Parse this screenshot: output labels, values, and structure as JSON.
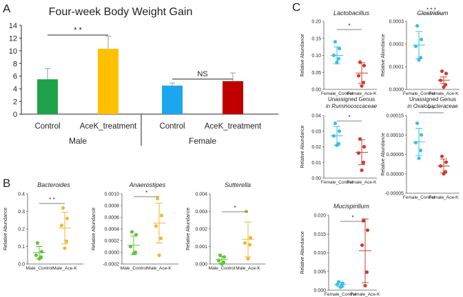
{
  "panels": {
    "a": "A",
    "b": "B",
    "c": "C"
  },
  "chart_data": [
    {
      "id": "A",
      "type": "bar",
      "title": "Four-week Body Weight Gain",
      "categories": [
        "Control",
        "AceK_treatment",
        "Control",
        "AceK_treatment"
      ],
      "groups": [
        "Male",
        "Female"
      ],
      "values": [
        5.5,
        10.3,
        4.5,
        5.2
      ],
      "errors": [
        1.7,
        2.0,
        0.4,
        1.3
      ],
      "colors": [
        "#1fa34a",
        "#ffc000",
        "#1ba6ee",
        "#c00000"
      ],
      "ylim": [
        0,
        14
      ],
      "yticks": [
        "0",
        "2",
        "4",
        "6",
        "8",
        "10",
        "12",
        "14"
      ],
      "sig": [
        "* *",
        "NS"
      ]
    },
    {
      "id": "B1",
      "type": "scatter",
      "title": "Bacteroides",
      "ylabel": "Relative Abundance",
      "categories": [
        "Male_Control",
        "Male_Ace-K"
      ],
      "ylim": [
        0,
        0.4
      ],
      "yticks": [
        "0.0",
        "0.1",
        "0.2",
        "0.3",
        "0.4"
      ],
      "tickvals": [
        0,
        0.1,
        0.2,
        0.3,
        0.4
      ],
      "groups": [
        {
          "name": "Male_Control",
          "color": "#5cc736",
          "mean": 0.065,
          "sd": 0.035,
          "points": [
            0.12,
            0.07,
            0.05,
            0.04,
            0.03
          ]
        },
        {
          "name": "Male_Ace-K",
          "color": "#f2b631",
          "mean": 0.205,
          "sd": 0.09,
          "points": [
            0.32,
            0.26,
            0.22,
            0.13,
            0.09
          ]
        }
      ],
      "sig": "* *"
    },
    {
      "id": "B2",
      "type": "scatter",
      "title": "Anaerostipes",
      "ylabel": "Relative Abundance",
      "categories": [
        "Male_Control",
        "Male_Ace-K"
      ],
      "ylim": [
        -0.0002,
        0.001
      ],
      "yticks": [
        "-0.0002",
        "0.0000",
        "0.0002",
        "0.0004",
        "0.0006",
        "0.0008",
        "0.0010"
      ],
      "tickvals": [
        -0.0002,
        0,
        0.0002,
        0.0004,
        0.0006,
        0.0008,
        0.001
      ],
      "groups": [
        {
          "name": "Male_Control",
          "color": "#5cc736",
          "mean": 0.00012,
          "sd": 0.00016,
          "points": [
            0.00035,
            0.0003,
            0.0001,
            0.0,
            -2e-05
          ]
        },
        {
          "name": "Male_Ace-K",
          "color": "#f2b631",
          "mean": 0.0005,
          "sd": 0.00034,
          "points": [
            0.00092,
            0.00063,
            0.00045,
            0.00024,
            -5e-05
          ]
        }
      ],
      "sig": "*"
    },
    {
      "id": "B3",
      "type": "scatter",
      "title": "Sutterella",
      "ylabel": "Relative Abundance",
      "categories": [
        "Male_Control",
        "Male_Ace-K"
      ],
      "ylim": [
        0,
        0.004
      ],
      "yticks": [
        "0.000",
        "0.001",
        "0.002",
        "0.003",
        "0.004"
      ],
      "tickvals": [
        0,
        0.001,
        0.002,
        0.003,
        0.004
      ],
      "groups": [
        {
          "name": "Male_Control",
          "color": "#5cc736",
          "mean": 0.00025,
          "sd": 0.0002,
          "points": [
            0.0005,
            0.0004,
            0.0002,
            0.0001,
            0.0
          ]
        },
        {
          "name": "Male_Ace-K",
          "color": "#f2b631",
          "mean": 0.0014,
          "sd": 0.001,
          "points": [
            0.003,
            0.0015,
            0.0012,
            0.0011,
            0.0003
          ]
        }
      ],
      "sig": "*"
    },
    {
      "id": "C1",
      "type": "scatter",
      "title": "Lactobacillus",
      "ylabel": "Relative Abundance",
      "categories": [
        "Female_Control",
        "Female_Ace-K"
      ],
      "ylim": [
        0,
        0.2
      ],
      "yticks": [
        "0.00",
        "0.05",
        "0.10",
        "0.15",
        "0.20"
      ],
      "tickvals": [
        0,
        0.05,
        0.1,
        0.15,
        0.2
      ],
      "groups": [
        {
          "name": "Female_Control",
          "color": "#39c0e4",
          "mean": 0.1,
          "sd": 0.025,
          "points": [
            0.14,
            0.12,
            0.1,
            0.09,
            0.08
          ]
        },
        {
          "name": "Female_Ace-K",
          "color": "#cf3b2a",
          "mean": 0.048,
          "sd": 0.03,
          "points": [
            0.08,
            0.07,
            0.04,
            0.02,
            0.01
          ]
        }
      ],
      "sig": "*"
    },
    {
      "id": "C2",
      "type": "scatter",
      "title": "Clostridium",
      "ylabel": "Relative Abundance",
      "categories": [
        "Female_Control",
        "Female_Ace-K"
      ],
      "ylim": [
        0,
        0.0003
      ],
      "yticks": [
        "0.0000",
        "0.0001",
        "0.0002",
        "0.0003"
      ],
      "tickvals": [
        0,
        0.0001,
        0.0002,
        0.0003
      ],
      "groups": [
        {
          "name": "Female_Control",
          "color": "#39c0e4",
          "mean": 0.000195,
          "sd": 6e-05,
          "points": [
            0.00028,
            0.00022,
            0.00019,
            0.00014,
            0.00013
          ]
        },
        {
          "name": "Female_Ace-K",
          "color": "#cf3b2a",
          "mean": 4e-05,
          "sd": 1.5e-05,
          "points": [
            8e-05,
            7e-05,
            4e-05,
            2e-05,
            1e-05
          ]
        }
      ],
      "sig": "* * *"
    },
    {
      "id": "C3",
      "type": "scatter",
      "title": [
        "Unassigned  Genus",
        "in Ruminococcaceae"
      ],
      "ylabel": "Relative Abundance",
      "categories": [
        "Female_Control",
        "Female_Ace-K"
      ],
      "ylim": [
        0,
        0.04
      ],
      "yticks": [
        "0.00",
        "0.01",
        "0.02",
        "0.03",
        "0.04"
      ],
      "tickvals": [
        0,
        0.01,
        0.02,
        0.03,
        0.04
      ],
      "groups": [
        {
          "name": "Female_Control",
          "color": "#39c0e4",
          "mean": 0.027,
          "sd": 0.006,
          "points": [
            0.035,
            0.03,
            0.027,
            0.022,
            0.021
          ]
        },
        {
          "name": "Female_Ace-K",
          "color": "#cf3b2a",
          "mean": 0.0165,
          "sd": 0.008,
          "points": [
            0.025,
            0.02,
            0.016,
            0.01,
            0.005
          ]
        }
      ],
      "sig": "*"
    },
    {
      "id": "C4",
      "type": "scatter",
      "title": [
        "Unassigned  Genus",
        "in Oxalobacteraceae"
      ],
      "ylabel": "Relative Abundance",
      "categories": [
        "Female_Control",
        "Female_Ace-K"
      ],
      "ylim": [
        -5e-05,
        0.00015
      ],
      "yticks": [
        "-0.00005",
        "0.00000",
        "0.00005",
        "0.00010",
        "0.00015"
      ],
      "tickvals": [
        -5e-05,
        0,
        5e-05,
        0.0001,
        0.00015
      ],
      "groups": [
        {
          "name": "Female_Control",
          "color": "#39c0e4",
          "mean": 8.2e-05,
          "sd": 3.5e-05,
          "points": [
            0.00013,
            0.0001,
            8e-05,
            6e-05,
            4e-05
          ]
        },
        {
          "name": "Female_Ace-K",
          "color": "#cf3b2a",
          "mean": 2e-05,
          "sd": 1.8e-05,
          "points": [
            4.5e-05,
            3e-05,
            2e-05,
            5e-06,
            0.0
          ]
        }
      ],
      "sig": "* *"
    },
    {
      "id": "C5",
      "type": "scatter",
      "title": "Mucispirillum",
      "ylabel": "Relative Abundance",
      "categories": [
        "Female_Control",
        "Female_Ace-K"
      ],
      "ylim": [
        0,
        0.02
      ],
      "yticks": [
        "0.000",
        "0.005",
        "0.010",
        "0.015",
        "0.020"
      ],
      "tickvals": [
        0,
        0.005,
        0.01,
        0.015,
        0.02
      ],
      "groups": [
        {
          "name": "Female_Control",
          "color": "#39c0e4",
          "mean": 0.0015,
          "sd": 0.0006,
          "points": [
            0.0022,
            0.0018,
            0.0015,
            0.001,
            0.0008
          ]
        },
        {
          "name": "Female_Ace-K",
          "color": "#cf3b2a",
          "mean": 0.0105,
          "sd": 0.0085,
          "points": [
            0.0185,
            0.016,
            0.012,
            0.0048,
            0.0012
          ]
        }
      ],
      "sig": "*"
    }
  ]
}
